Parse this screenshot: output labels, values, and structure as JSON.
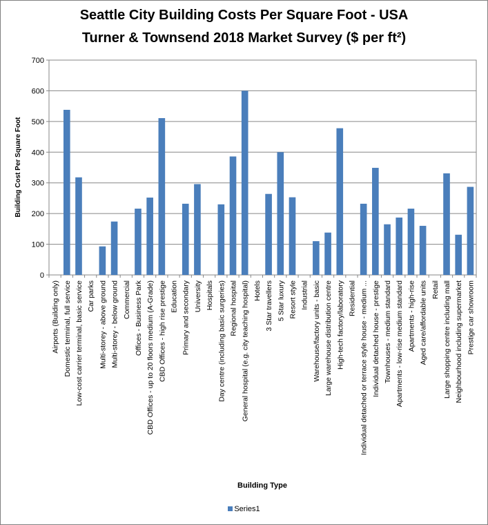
{
  "chart_data": {
    "type": "bar",
    "title": "Seattle City Building Costs Per Square Foot - USA",
    "subtitle": "Turner & Townsend 2018 Market Survey ($ per ft²)",
    "xlabel": "Building Type",
    "ylabel": "Building Cost Per Square Foot",
    "ylim": [
      0,
      700
    ],
    "yticks": [
      0,
      100,
      200,
      300,
      400,
      500,
      600,
      700
    ],
    "grid": true,
    "legend_position": "bottom",
    "bar_color": "#4a7ebb",
    "categories": [
      "Airports (Building only)",
      "Domestic terminal, full service",
      "Low-cost carrier terminal, basic service",
      "Car parks",
      "Multi-storey - above ground",
      "Multi-storey - below ground",
      "Commercial",
      "Offices - Business Park",
      "CBD Offices - up to 20 floors medium (A-Grade)",
      "CBD Offices - high rise prestige",
      "Education",
      "Primary and secondary",
      "University",
      "Hospitals",
      "Day centre (including basic surgeries)",
      "Regional hospital",
      "General hospital (e.g. city teaching hospital)",
      "Hotels",
      "3 Star travellers",
      "5 Star luxury",
      "Resort style",
      "Industrial",
      "Warehouse/factory units - basic",
      "Large warehouse distribution centre",
      "High-tech factory/laboratory",
      "Residential",
      "Individual detached or terrace style house - medium ...",
      "Individual detached house - prestige",
      "Townhouses - medium standard",
      "Apartments - low-rise medium standard",
      "Apartments - high-rise",
      "Aged care/affordable units",
      "Retail",
      "Large shopping centre including mall",
      "Neighbourhood including supermarket",
      "Prestige car showroom"
    ],
    "series": [
      {
        "name": "Series1",
        "values": [
          null,
          538,
          318,
          null,
          93,
          174,
          null,
          216,
          252,
          511,
          null,
          232,
          296,
          null,
          230,
          386,
          600,
          null,
          264,
          400,
          253,
          null,
          110,
          138,
          478,
          null,
          232,
          349,
          165,
          187,
          216,
          160,
          null,
          331,
          131,
          287
        ]
      }
    ]
  }
}
